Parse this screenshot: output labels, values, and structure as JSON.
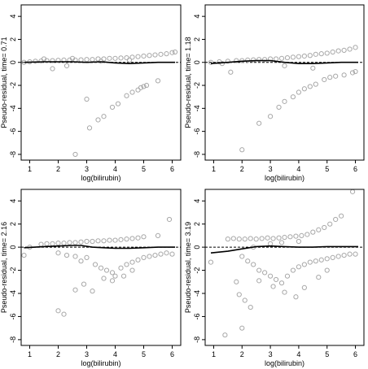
{
  "chart_data": [
    {
      "type": "scatter",
      "title": "",
      "xlabel": "log(bilirubin)",
      "ylabel": "Pseudo-residual, time= 0.71",
      "xlim": [
        0.7,
        6.3
      ],
      "ylim": [
        -8.5,
        5
      ],
      "xticks": [
        1,
        2,
        3,
        4,
        5,
        6
      ],
      "yticks": [
        -8,
        -6,
        -4,
        -2,
        0,
        2,
        4
      ],
      "reference_line": 0,
      "points": [
        [
          0.8,
          0
        ],
        [
          1.0,
          0.05
        ],
        [
          1.2,
          0.1
        ],
        [
          1.4,
          0.12
        ],
        [
          1.6,
          0.15
        ],
        [
          1.8,
          0.15
        ],
        [
          2.0,
          0.18
        ],
        [
          2.2,
          0.2
        ],
        [
          2.4,
          0.2
        ],
        [
          2.6,
          0.2
        ],
        [
          2.8,
          0.22
        ],
        [
          3.0,
          0.25
        ],
        [
          3.2,
          0.25
        ],
        [
          3.4,
          0.3
        ],
        [
          3.6,
          0.3
        ],
        [
          3.8,
          0.35
        ],
        [
          4.0,
          0.35
        ],
        [
          4.2,
          0.38
        ],
        [
          4.4,
          0.4
        ],
        [
          4.6,
          0.45
        ],
        [
          4.8,
          0.5
        ],
        [
          5.0,
          0.55
        ],
        [
          5.2,
          0.6
        ],
        [
          5.4,
          0.65
        ],
        [
          5.6,
          0.7
        ],
        [
          5.8,
          0.75
        ],
        [
          6.0,
          0.85
        ],
        [
          6.1,
          0.9
        ],
        [
          1.5,
          0.3
        ],
        [
          2.5,
          0.35
        ],
        [
          3.5,
          0.1
        ],
        [
          4.5,
          0.2
        ],
        [
          1.8,
          -0.55
        ],
        [
          2.3,
          -0.3
        ],
        [
          2.6,
          -8.0
        ],
        [
          3.0,
          -3.2
        ],
        [
          3.1,
          -5.7
        ],
        [
          3.4,
          -5.0
        ],
        [
          3.6,
          -4.7
        ],
        [
          3.9,
          -3.9
        ],
        [
          4.1,
          -3.6
        ],
        [
          4.4,
          -2.9
        ],
        [
          4.6,
          -2.6
        ],
        [
          4.8,
          -2.4
        ],
        [
          4.9,
          -2.2
        ],
        [
          5.0,
          -2.1
        ],
        [
          5.1,
          -2.0
        ],
        [
          5.5,
          -1.6
        ]
      ],
      "smooth": [
        [
          0.8,
          0.0
        ],
        [
          1.5,
          0.05
        ],
        [
          2.0,
          0.05
        ],
        [
          2.5,
          0.05
        ],
        [
          3.0,
          0.0
        ],
        [
          3.5,
          0.05
        ],
        [
          4.0,
          -0.05
        ],
        [
          4.5,
          -0.1
        ],
        [
          5.0,
          -0.05
        ],
        [
          5.5,
          0.0
        ],
        [
          6.1,
          0.0
        ]
      ]
    },
    {
      "type": "scatter",
      "title": "",
      "xlabel": "log(bilirubin)",
      "ylabel": "Pseudo-residual, time= 1.18",
      "xlim": [
        0.7,
        6.3
      ],
      "ylim": [
        -8.5,
        5
      ],
      "xticks": [
        1,
        2,
        3,
        4,
        5,
        6
      ],
      "yticks": [
        -8,
        -6,
        -4,
        -2,
        0,
        2,
        4
      ],
      "reference_line": 0,
      "points": [
        [
          0.9,
          0
        ],
        [
          1.2,
          0.05
        ],
        [
          1.5,
          0.1
        ],
        [
          1.8,
          0.15
        ],
        [
          2.0,
          0.15
        ],
        [
          2.2,
          0.2
        ],
        [
          2.4,
          0.22
        ],
        [
          2.6,
          0.25
        ],
        [
          2.8,
          0.25
        ],
        [
          3.0,
          0.3
        ],
        [
          3.2,
          0.3
        ],
        [
          3.4,
          0.35
        ],
        [
          3.6,
          0.4
        ],
        [
          3.8,
          0.45
        ],
        [
          4.0,
          0.5
        ],
        [
          4.2,
          0.55
        ],
        [
          4.4,
          0.6
        ],
        [
          4.6,
          0.7
        ],
        [
          4.8,
          0.75
        ],
        [
          5.0,
          0.8
        ],
        [
          5.2,
          0.9
        ],
        [
          5.4,
          1.0
        ],
        [
          5.6,
          1.05
        ],
        [
          5.8,
          1.15
        ],
        [
          6.0,
          1.3
        ],
        [
          1.3,
          -0.1
        ],
        [
          1.6,
          -0.85
        ],
        [
          2.0,
          -7.6
        ],
        [
          2.6,
          -5.3
        ],
        [
          3.0,
          -4.7
        ],
        [
          3.3,
          -3.9
        ],
        [
          3.5,
          -3.4
        ],
        [
          3.8,
          -3.0
        ],
        [
          4.0,
          -2.6
        ],
        [
          4.2,
          -2.3
        ],
        [
          4.4,
          -2.1
        ],
        [
          4.6,
          -1.9
        ],
        [
          4.9,
          -1.5
        ],
        [
          5.1,
          -1.3
        ],
        [
          5.3,
          -1.2
        ],
        [
          5.6,
          -1.1
        ],
        [
          5.9,
          -0.9
        ],
        [
          6.0,
          -0.8
        ],
        [
          3.5,
          -0.3
        ],
        [
          4.5,
          -0.5
        ]
      ],
      "smooth": [
        [
          0.9,
          -0.1
        ],
        [
          1.5,
          0.0
        ],
        [
          2.0,
          0.1
        ],
        [
          2.5,
          0.15
        ],
        [
          3.0,
          0.15
        ],
        [
          3.5,
          0.0
        ],
        [
          4.0,
          -0.1
        ],
        [
          4.5,
          -0.1
        ],
        [
          5.0,
          -0.05
        ],
        [
          5.5,
          0.0
        ],
        [
          6.1,
          0.0
        ]
      ]
    },
    {
      "type": "scatter",
      "title": "",
      "xlabel": "log(bilirubin)",
      "ylabel": "Pseudo-residual, time= 2.16",
      "xlim": [
        0.7,
        6.3
      ],
      "ylim": [
        -8.5,
        5
      ],
      "xticks": [
        1,
        2,
        3,
        4,
        5,
        6
      ],
      "yticks": [
        -8,
        -6,
        -4,
        -2,
        0,
        2,
        4
      ],
      "reference_line": 0,
      "points": [
        [
          0.8,
          -0.7
        ],
        [
          1.0,
          0.0
        ],
        [
          1.4,
          0.25
        ],
        [
          1.6,
          0.3
        ],
        [
          1.8,
          0.3
        ],
        [
          2.0,
          0.35
        ],
        [
          2.2,
          0.35
        ],
        [
          2.4,
          0.4
        ],
        [
          2.6,
          0.4
        ],
        [
          2.8,
          0.45
        ],
        [
          3.0,
          0.5
        ],
        [
          3.2,
          0.5
        ],
        [
          3.4,
          0.55
        ],
        [
          3.6,
          0.55
        ],
        [
          3.8,
          0.6
        ],
        [
          4.0,
          0.6
        ],
        [
          4.2,
          0.65
        ],
        [
          4.4,
          0.7
        ],
        [
          4.6,
          0.75
        ],
        [
          4.8,
          0.8
        ],
        [
          5.0,
          0.9
        ],
        [
          5.5,
          1.0
        ],
        [
          5.9,
          2.4
        ],
        [
          2.0,
          -0.5
        ],
        [
          2.3,
          -0.7
        ],
        [
          2.6,
          -0.8
        ],
        [
          2.8,
          -1.2
        ],
        [
          3.0,
          -0.9
        ],
        [
          3.3,
          -1.5
        ],
        [
          3.5,
          -1.8
        ],
        [
          3.7,
          -2.0
        ],
        [
          3.9,
          -2.2
        ],
        [
          4.0,
          -2.5
        ],
        [
          4.2,
          -1.8
        ],
        [
          4.4,
          -1.5
        ],
        [
          4.6,
          -1.3
        ],
        [
          4.8,
          -1.1
        ],
        [
          5.0,
          -0.9
        ],
        [
          5.2,
          -0.8
        ],
        [
          5.4,
          -0.7
        ],
        [
          5.6,
          -0.6
        ],
        [
          5.8,
          -0.5
        ],
        [
          6.0,
          -0.6
        ],
        [
          2.0,
          -5.5
        ],
        [
          2.2,
          -5.8
        ],
        [
          2.6,
          -3.7
        ],
        [
          2.9,
          -3.2
        ],
        [
          3.2,
          -3.8
        ],
        [
          3.6,
          -2.7
        ],
        [
          3.9,
          -2.9
        ],
        [
          4.3,
          -2.5
        ],
        [
          4.6,
          -2.0
        ]
      ],
      "smooth": [
        [
          0.8,
          -0.05
        ],
        [
          1.5,
          0.05
        ],
        [
          2.0,
          0.1
        ],
        [
          2.5,
          0.15
        ],
        [
          2.8,
          0.15
        ],
        [
          3.2,
          0.0
        ],
        [
          3.6,
          -0.05
        ],
        [
          4.0,
          -0.1
        ],
        [
          4.5,
          -0.1
        ],
        [
          5.0,
          -0.05
        ],
        [
          5.5,
          0.0
        ],
        [
          6.1,
          0.0
        ]
      ]
    },
    {
      "type": "scatter",
      "title": "",
      "xlabel": "log(bilirubin)",
      "ylabel": "Pseudo-residual, time= 3.19",
      "xlim": [
        0.7,
        6.3
      ],
      "ylim": [
        -8.5,
        5
      ],
      "xticks": [
        1,
        2,
        3,
        4,
        5,
        6
      ],
      "yticks": [
        -8,
        -6,
        -4,
        -2,
        0,
        2,
        4
      ],
      "reference_line": 0,
      "points": [
        [
          0.9,
          -1.3
        ],
        [
          1.4,
          -7.6
        ],
        [
          1.8,
          -3.0
        ],
        [
          1.9,
          -4.1
        ],
        [
          2.0,
          -7.0
        ],
        [
          2.1,
          -4.6
        ],
        [
          2.3,
          -5.2
        ],
        [
          1.5,
          0.7
        ],
        [
          1.7,
          0.75
        ],
        [
          1.9,
          0.7
        ],
        [
          2.1,
          0.7
        ],
        [
          2.3,
          0.75
        ],
        [
          2.5,
          0.7
        ],
        [
          2.7,
          0.75
        ],
        [
          2.9,
          0.8
        ],
        [
          3.1,
          0.75
        ],
        [
          3.3,
          0.8
        ],
        [
          3.5,
          0.85
        ],
        [
          3.7,
          0.9
        ],
        [
          3.9,
          0.95
        ],
        [
          4.1,
          1.0
        ],
        [
          4.3,
          1.1
        ],
        [
          4.5,
          1.3
        ],
        [
          4.7,
          1.5
        ],
        [
          4.9,
          1.7
        ],
        [
          5.1,
          2.0
        ],
        [
          5.3,
          2.4
        ],
        [
          5.5,
          2.7
        ],
        [
          5.9,
          4.8
        ],
        [
          2.0,
          -0.8
        ],
        [
          2.2,
          -1.2
        ],
        [
          2.4,
          -1.5
        ],
        [
          2.6,
          -2.0
        ],
        [
          2.8,
          -2.2
        ],
        [
          3.0,
          -2.5
        ],
        [
          3.2,
          -2.8
        ],
        [
          3.4,
          -3.1
        ],
        [
          3.6,
          -2.5
        ],
        [
          3.8,
          -2.0
        ],
        [
          4.0,
          -1.7
        ],
        [
          4.2,
          -1.5
        ],
        [
          4.4,
          -1.3
        ],
        [
          4.6,
          -1.2
        ],
        [
          4.8,
          -1.1
        ],
        [
          5.0,
          -1.0
        ],
        [
          5.2,
          -0.9
        ],
        [
          5.4,
          -0.8
        ],
        [
          5.6,
          -0.7
        ],
        [
          5.8,
          -0.6
        ],
        [
          6.0,
          -0.6
        ],
        [
          2.6,
          -2.9
        ],
        [
          3.1,
          -3.4
        ],
        [
          3.5,
          -3.9
        ],
        [
          3.9,
          -4.3
        ],
        [
          4.2,
          -3.5
        ],
        [
          4.7,
          -2.6
        ],
        [
          5.0,
          -2.0
        ],
        [
          2.4,
          0.0
        ],
        [
          3.0,
          0.3
        ],
        [
          3.4,
          0.4
        ],
        [
          4.0,
          0.5
        ]
      ],
      "smooth": [
        [
          0.9,
          -0.5
        ],
        [
          1.5,
          -0.35
        ],
        [
          2.0,
          -0.15
        ],
        [
          2.5,
          0.05
        ],
        [
          3.0,
          0.1
        ],
        [
          3.5,
          0.05
        ],
        [
          4.0,
          0.0
        ],
        [
          4.5,
          0.0
        ],
        [
          5.0,
          0.05
        ],
        [
          5.5,
          0.05
        ],
        [
          6.1,
          0.05
        ]
      ]
    }
  ]
}
